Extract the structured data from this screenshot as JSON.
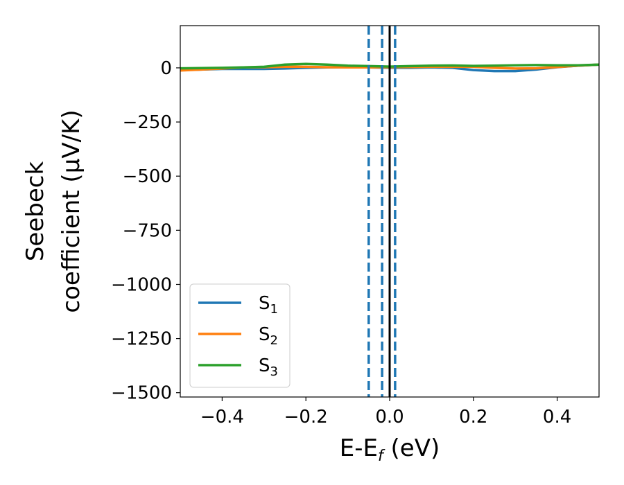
{
  "chart_data": {
    "type": "line",
    "xlabel_main": "E-E",
    "xlabel_sub": "f",
    "xlabel_unit": " (eV)",
    "ylabel_line1": "Seebeck",
    "ylabel_line2": "coefficient  (μV/K)",
    "xlim": [
      -0.5,
      0.5
    ],
    "ylim": [
      -1520,
      195
    ],
    "xticks": [
      {
        "value": -0.4,
        "label": "−0.4"
      },
      {
        "value": -0.2,
        "label": "−0.2"
      },
      {
        "value": 0.0,
        "label": "0.0"
      },
      {
        "value": 0.2,
        "label": "0.2"
      },
      {
        "value": 0.4,
        "label": "0.4"
      }
    ],
    "yticks": [
      {
        "value": 0,
        "label": "0"
      },
      {
        "value": -250,
        "label": "−250"
      },
      {
        "value": -500,
        "label": "−500"
      },
      {
        "value": -750,
        "label": "−750"
      },
      {
        "value": -1000,
        "label": "−1000"
      },
      {
        "value": -1250,
        "label": "−1250"
      },
      {
        "value": -1500,
        "label": "−1500"
      }
    ],
    "grid": false,
    "legend_position": "lower-left",
    "series": [
      {
        "name": "S",
        "sub": "1",
        "color": "#1f77b4",
        "x": [
          -0.5,
          -0.45,
          -0.4,
          -0.35,
          -0.3,
          -0.25,
          -0.2,
          -0.15,
          -0.1,
          -0.05,
          0.0,
          0.05,
          0.1,
          0.15,
          0.2,
          0.25,
          0.3,
          0.35,
          0.4,
          0.45,
          0.5
        ],
        "y": [
          -10,
          -8,
          -5,
          -5,
          -5,
          -3,
          0,
          2,
          3,
          2,
          0,
          0,
          2,
          0,
          -10,
          -15,
          -15,
          -8,
          3,
          10,
          15
        ]
      },
      {
        "name": "S",
        "sub": "2",
        "color": "#ff7f0e",
        "x": [
          -0.5,
          -0.45,
          -0.4,
          -0.35,
          -0.3,
          -0.25,
          -0.2,
          -0.15,
          -0.1,
          -0.05,
          0.0,
          0.05,
          0.1,
          0.15,
          0.2,
          0.25,
          0.3,
          0.35,
          0.4,
          0.45,
          0.5
        ],
        "y": [
          -12,
          -8,
          -3,
          2,
          3,
          5,
          5,
          3,
          2,
          2,
          3,
          4,
          5,
          5,
          5,
          0,
          -3,
          -2,
          4,
          10,
          15
        ]
      },
      {
        "name": "S",
        "sub": "3",
        "color": "#2ca02c",
        "x": [
          -0.5,
          -0.45,
          -0.4,
          -0.35,
          -0.3,
          -0.25,
          -0.2,
          -0.15,
          -0.1,
          -0.05,
          0.0,
          0.05,
          0.1,
          0.15,
          0.2,
          0.25,
          0.3,
          0.35,
          0.4,
          0.45,
          0.5
        ],
        "y": [
          -2,
          -1,
          0,
          2,
          5,
          15,
          18,
          15,
          10,
          8,
          6,
          8,
          10,
          11,
          9,
          10,
          12,
          13,
          12,
          12,
          15
        ]
      }
    ],
    "vertical_lines": [
      {
        "x": -0.05,
        "style": "dashed",
        "color": "#1f77b4"
      },
      {
        "x": -0.018,
        "style": "dashed",
        "color": "#1f77b4"
      },
      {
        "x": 0.013,
        "style": "dashed",
        "color": "#1f77b4"
      },
      {
        "x": 0.0,
        "style": "solid",
        "color": "#000000"
      }
    ]
  }
}
